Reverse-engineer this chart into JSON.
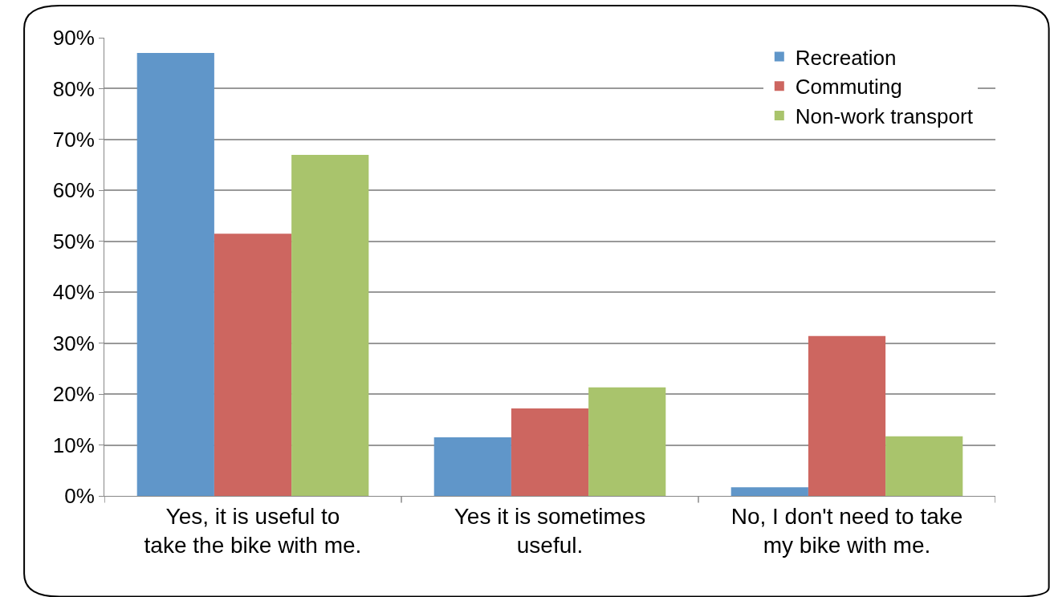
{
  "chart_data": {
    "type": "bar",
    "categories": [
      "Yes, it is useful to take the bike with me.",
      "Yes it is sometimes useful.",
      "No, I don't need to take my bike with me."
    ],
    "series": [
      {
        "name": "Recreation",
        "color": "#6096c9",
        "values": [
          87,
          11.5,
          1.7
        ]
      },
      {
        "name": "Commuting",
        "color": "#cd6660",
        "values": [
          51.5,
          17.2,
          31.4
        ]
      },
      {
        "name": "Non-work transport",
        "color": "#a9c46c",
        "values": [
          67,
          21.3,
          11.7
        ]
      }
    ],
    "ylim": [
      0,
      90
    ],
    "yticks": [
      {
        "value": 0,
        "label": "0%"
      },
      {
        "value": 10,
        "label": "10%"
      },
      {
        "value": 20,
        "label": "20%"
      },
      {
        "value": 30,
        "label": "30%"
      },
      {
        "value": 40,
        "label": "40%"
      },
      {
        "value": 50,
        "label": "50%"
      },
      {
        "value": 60,
        "label": "60%"
      },
      {
        "value": 70,
        "label": "70%"
      },
      {
        "value": 80,
        "label": "80%"
      },
      {
        "value": 90,
        "label": "90%"
      }
    ],
    "grid": "y",
    "legend": "top right"
  }
}
